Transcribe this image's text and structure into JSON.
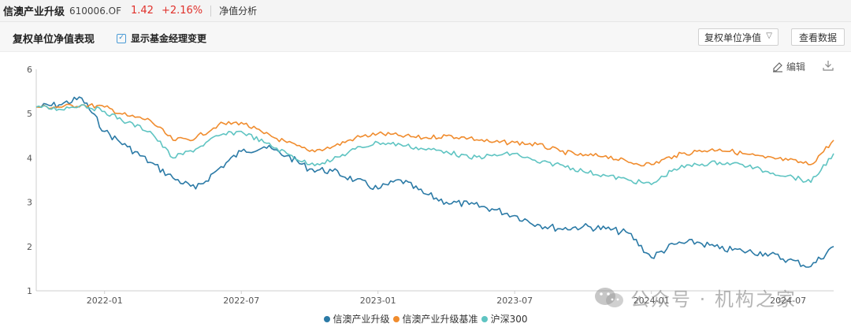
{
  "topbar": {
    "fund_name": "信澳产业升级",
    "fund_code": "610006.OF",
    "price": "1.42",
    "change": "+2.16%",
    "tab": "净值分析"
  },
  "header": {
    "title": "复权单位净值表现",
    "checkbox_label": "显示基金经理变更",
    "checkbox_checked": true,
    "select_value": "复权单位净值",
    "view_data_button": "查看数据"
  },
  "tools": {
    "edit_label": "编辑",
    "download_icon": "download-icon"
  },
  "colors": {
    "series1": "#2b7aa6",
    "series2": "#f08c2e",
    "series3": "#5fc4c2",
    "red": "#e0312b"
  },
  "chart_data": {
    "type": "line",
    "x_ticks": [
      "2022-01",
      "2022-07",
      "2023-01",
      "2023-07",
      "2024-01",
      "2024-07"
    ],
    "x_range": [
      "2021-10",
      "2024-09"
    ],
    "ylim": [
      1,
      6
    ],
    "y_ticks": [
      "1",
      "2",
      "3",
      "4",
      "5",
      "6"
    ],
    "grid": false,
    "legend": "bottom",
    "series": [
      {
        "name": "信澳产业升级",
        "color": "#2b7aa6",
        "points": [
          [
            "2021-10",
            5.15
          ],
          [
            "2021-11",
            5.2
          ],
          [
            "2021-12",
            5.35
          ],
          [
            "2022-01",
            4.6
          ],
          [
            "2022-02",
            4.25
          ],
          [
            "2022-03",
            3.9
          ],
          [
            "2022-04",
            3.55
          ],
          [
            "2022-05",
            3.3
          ],
          [
            "2022-06",
            3.75
          ],
          [
            "2022-07",
            4.15
          ],
          [
            "2022-08",
            4.25
          ],
          [
            "2022-09",
            4.05
          ],
          [
            "2022-10",
            3.75
          ],
          [
            "2022-11",
            3.7
          ],
          [
            "2022-12",
            3.5
          ],
          [
            "2023-01",
            3.3
          ],
          [
            "2023-02",
            3.5
          ],
          [
            "2023-03",
            3.2
          ],
          [
            "2023-04",
            3.0
          ],
          [
            "2023-05",
            2.95
          ],
          [
            "2023-06",
            2.85
          ],
          [
            "2023-07",
            2.7
          ],
          [
            "2023-08",
            2.5
          ],
          [
            "2023-09",
            2.4
          ],
          [
            "2023-10",
            2.45
          ],
          [
            "2023-11",
            2.4
          ],
          [
            "2023-12",
            2.3
          ],
          [
            "2024-01",
            1.75
          ],
          [
            "2024-02",
            2.05
          ],
          [
            "2024-03",
            2.1
          ],
          [
            "2024-04",
            1.95
          ],
          [
            "2024-05",
            1.9
          ],
          [
            "2024-06",
            1.85
          ],
          [
            "2024-07",
            1.7
          ],
          [
            "2024-08",
            1.55
          ],
          [
            "2024-09",
            2.0
          ]
        ]
      },
      {
        "name": "信澳产业升级基准",
        "color": "#f08c2e",
        "points": [
          [
            "2021-10",
            5.15
          ],
          [
            "2021-11",
            5.15
          ],
          [
            "2021-12",
            5.2
          ],
          [
            "2022-01",
            5.15
          ],
          [
            "2022-02",
            4.95
          ],
          [
            "2022-03",
            4.85
          ],
          [
            "2022-04",
            4.4
          ],
          [
            "2022-05",
            4.45
          ],
          [
            "2022-06",
            4.75
          ],
          [
            "2022-07",
            4.8
          ],
          [
            "2022-08",
            4.55
          ],
          [
            "2022-09",
            4.35
          ],
          [
            "2022-10",
            4.15
          ],
          [
            "2022-11",
            4.25
          ],
          [
            "2022-12",
            4.45
          ],
          [
            "2023-01",
            4.55
          ],
          [
            "2023-02",
            4.5
          ],
          [
            "2023-03",
            4.45
          ],
          [
            "2023-04",
            4.5
          ],
          [
            "2023-05",
            4.45
          ],
          [
            "2023-06",
            4.35
          ],
          [
            "2023-07",
            4.35
          ],
          [
            "2023-08",
            4.3
          ],
          [
            "2023-09",
            4.15
          ],
          [
            "2023-10",
            4.05
          ],
          [
            "2023-11",
            4.05
          ],
          [
            "2023-12",
            3.9
          ],
          [
            "2024-01",
            3.85
          ],
          [
            "2024-02",
            4.05
          ],
          [
            "2024-03",
            4.15
          ],
          [
            "2024-04",
            4.2
          ],
          [
            "2024-05",
            4.1
          ],
          [
            "2024-06",
            4.0
          ],
          [
            "2024-07",
            3.95
          ],
          [
            "2024-08",
            3.85
          ],
          [
            "2024-09",
            4.4
          ]
        ]
      },
      {
        "name": "沪深300",
        "color": "#5fc4c2",
        "points": [
          [
            "2021-10",
            5.15
          ],
          [
            "2021-11",
            5.1
          ],
          [
            "2021-12",
            5.2
          ],
          [
            "2022-01",
            5.05
          ],
          [
            "2022-02",
            4.8
          ],
          [
            "2022-03",
            4.6
          ],
          [
            "2022-04",
            4.0
          ],
          [
            "2022-05",
            4.2
          ],
          [
            "2022-06",
            4.5
          ],
          [
            "2022-07",
            4.6
          ],
          [
            "2022-08",
            4.35
          ],
          [
            "2022-09",
            4.1
          ],
          [
            "2022-10",
            3.85
          ],
          [
            "2022-11",
            3.95
          ],
          [
            "2022-12",
            4.2
          ],
          [
            "2023-01",
            4.35
          ],
          [
            "2023-02",
            4.3
          ],
          [
            "2023-03",
            4.2
          ],
          [
            "2023-04",
            4.15
          ],
          [
            "2023-05",
            4.0
          ],
          [
            "2023-06",
            4.05
          ],
          [
            "2023-07",
            4.1
          ],
          [
            "2023-08",
            3.9
          ],
          [
            "2023-09",
            3.85
          ],
          [
            "2023-10",
            3.7
          ],
          [
            "2023-11",
            3.6
          ],
          [
            "2023-12",
            3.5
          ],
          [
            "2024-01",
            3.4
          ],
          [
            "2024-02",
            3.75
          ],
          [
            "2024-03",
            3.85
          ],
          [
            "2024-04",
            3.9
          ],
          [
            "2024-05",
            3.85
          ],
          [
            "2024-06",
            3.7
          ],
          [
            "2024-07",
            3.6
          ],
          [
            "2024-08",
            3.45
          ],
          [
            "2024-09",
            4.1
          ]
        ]
      }
    ]
  },
  "watermark": {
    "text": "公众号 · 机构之家"
  }
}
